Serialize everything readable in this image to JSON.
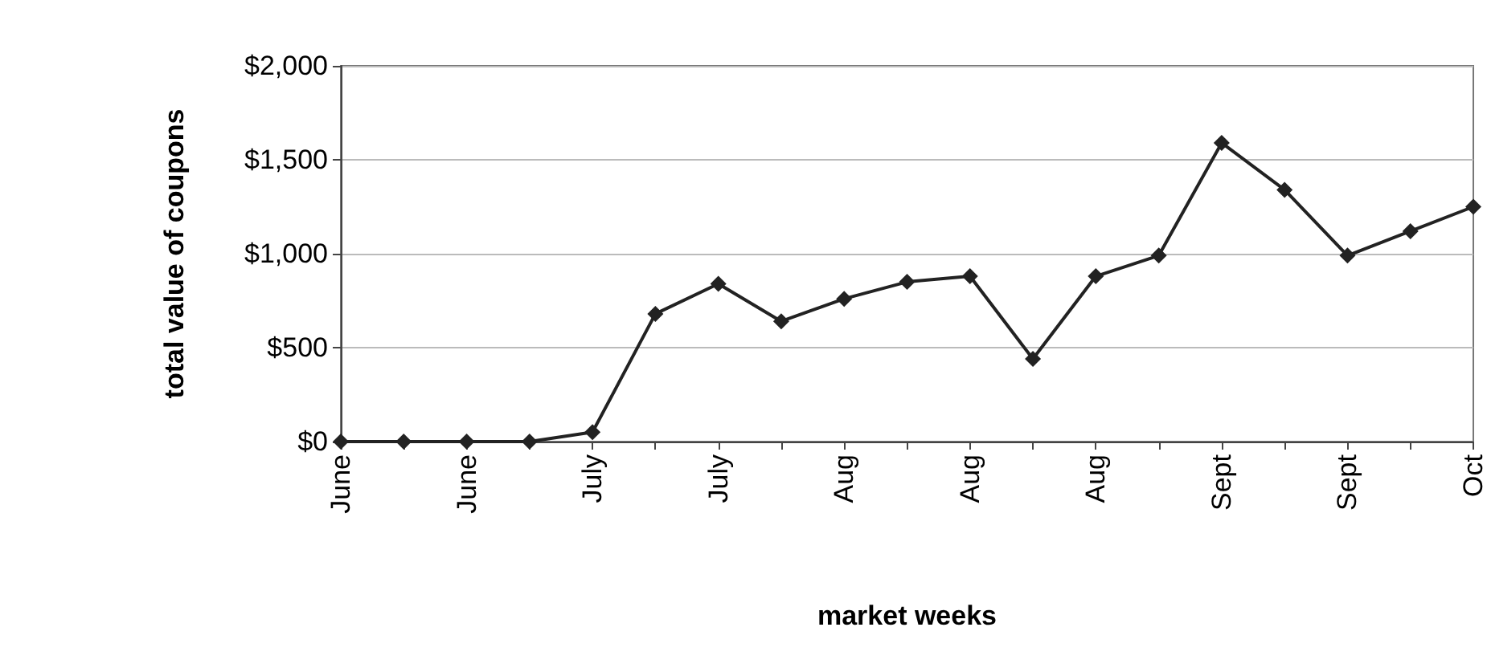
{
  "chart_data": {
    "type": "line",
    "xlabel": "market weeks",
    "ylabel": "total value of coupons",
    "categories": [
      "June",
      null,
      "June",
      null,
      "July",
      null,
      "July",
      null,
      "Aug",
      null,
      "Aug",
      null,
      "Aug",
      null,
      "Sept",
      null,
      "Sept",
      null,
      "Oct"
    ],
    "series": [
      {
        "color": "#222222",
        "values": [
          0,
          0,
          0,
          0,
          50,
          680,
          840,
          640,
          760,
          850,
          880,
          440,
          880,
          990,
          1590,
          1340,
          990,
          1120,
          1250
        ]
      }
    ],
    "ylim": [
      0,
      2000
    ],
    "yticks": [
      {
        "value": 0,
        "label": "$0"
      },
      {
        "value": 500,
        "label": "$500"
      },
      {
        "value": 1000,
        "label": "$1,000"
      },
      {
        "value": 1500,
        "label": "$1,500"
      },
      {
        "value": 2000,
        "label": "$2,000"
      }
    ],
    "grid": "y",
    "marker": "diamond",
    "line_style": "solid"
  }
}
